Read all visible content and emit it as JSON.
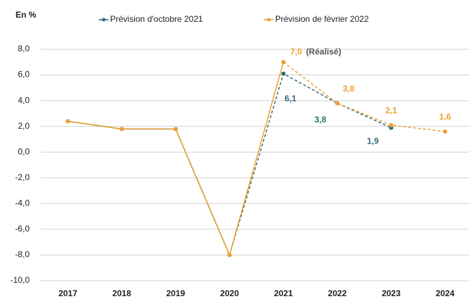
{
  "chart_data": {
    "type": "line",
    "y_label": "En %",
    "categories": [
      "2017",
      "2018",
      "2019",
      "2020",
      "2021",
      "2022",
      "2023",
      "2024"
    ],
    "series": [
      {
        "name": "Prévision d'octobre 2021",
        "color": "#2e6b78",
        "dash_from": 3,
        "values": [
          2.4,
          1.8,
          1.8,
          -8.0,
          6.1,
          3.8,
          1.9,
          null
        ],
        "value_labels": [
          null,
          null,
          null,
          null,
          "6,1",
          "3,8",
          "1,9",
          null
        ]
      },
      {
        "name": "Prévision de février 2022",
        "color": "#f0a030",
        "dash_from": 4,
        "values": [
          2.4,
          1.8,
          1.8,
          -8.0,
          7.0,
          3.8,
          2.1,
          1.6
        ],
        "value_labels": [
          null,
          null,
          null,
          null,
          "7,0",
          "3,8",
          "2,1",
          "1,6"
        ]
      }
    ],
    "annotation": "(Réalisé)",
    "ylim": [
      -10,
      8
    ],
    "yticks": [
      {
        "value": -10,
        "label": "-10,0"
      },
      {
        "value": -8,
        "label": "-8,0"
      },
      {
        "value": -6,
        "label": "-6,0"
      },
      {
        "value": -4,
        "label": "-4,0"
      },
      {
        "value": -2,
        "label": "-2,0"
      },
      {
        "value": 0,
        "label": "0,0"
      },
      {
        "value": 2,
        "label": "2,0"
      },
      {
        "value": 4,
        "label": "4,0"
      },
      {
        "value": 6,
        "label": "6,0"
      },
      {
        "value": 8,
        "label": "8,0"
      }
    ],
    "grid": true
  }
}
